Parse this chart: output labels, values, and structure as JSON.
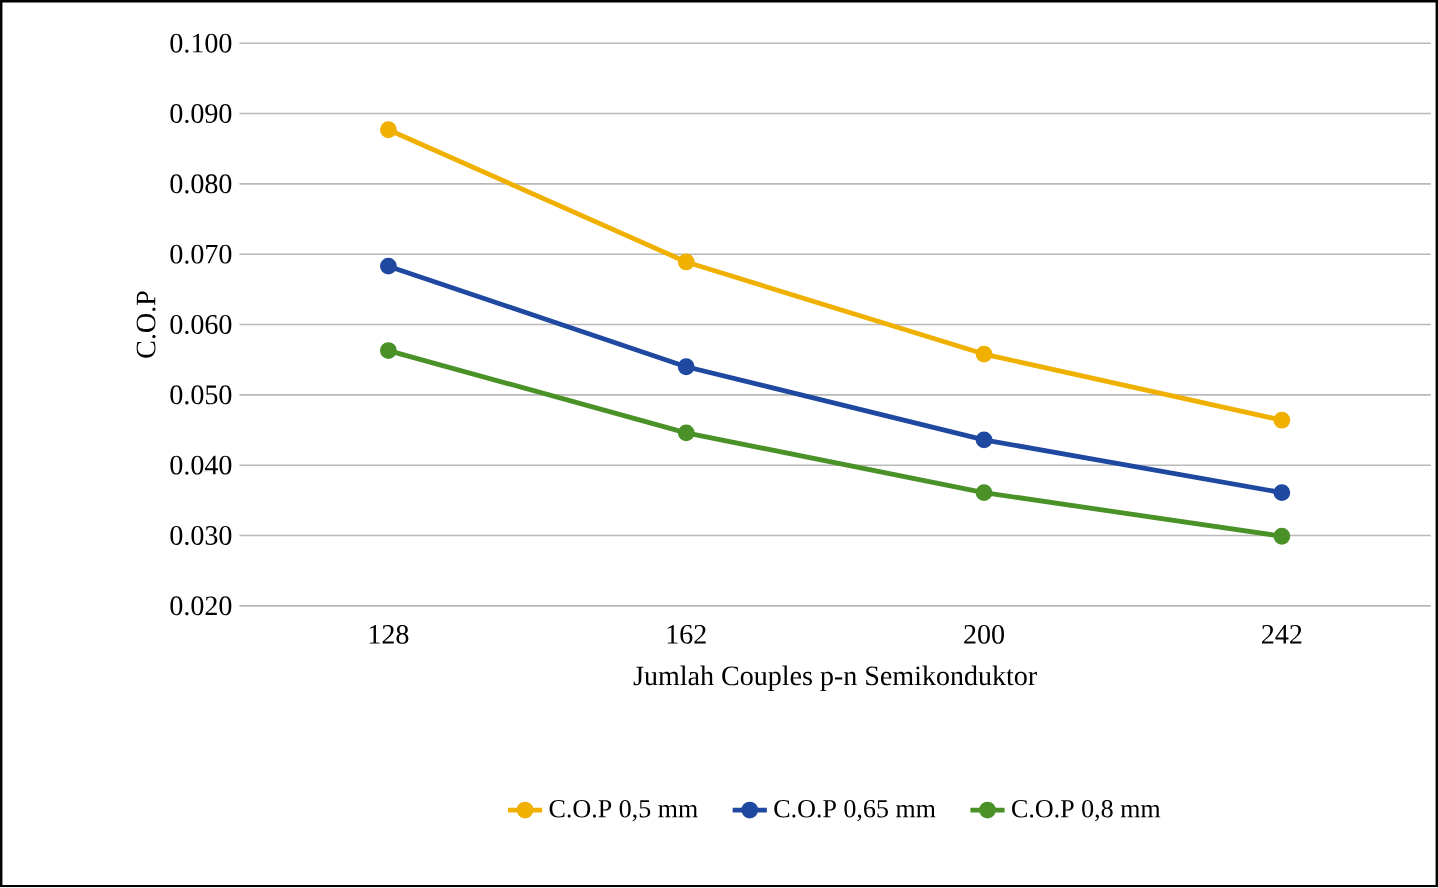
{
  "chart_data": {
    "type": "line",
    "xlabel": "Jumlah Couples p-n Semikonduktor",
    "ylabel": "C.O.P",
    "categories": [
      "128",
      "162",
      "200",
      "242"
    ],
    "series": [
      {
        "name": "C.O.P 0,5 mm",
        "color": "#f0b000",
        "values": [
          0.0877,
          0.0689,
          0.0558,
          0.0464
        ]
      },
      {
        "name": "C.O.P 0,65 mm",
        "color": "#1f48a0",
        "values": [
          0.0683,
          0.054,
          0.0436,
          0.0361
        ]
      },
      {
        "name": "C.O.P 0,8 mm",
        "color": "#4a9128",
        "values": [
          0.0563,
          0.0446,
          0.0361,
          0.0299
        ]
      }
    ],
    "ylim": [
      0.02,
      0.1
    ],
    "yticks": [
      {
        "value": 0.02,
        "label": "0.020"
      },
      {
        "value": 0.03,
        "label": "0.030"
      },
      {
        "value": 0.04,
        "label": "0.040"
      },
      {
        "value": 0.05,
        "label": "0.050"
      },
      {
        "value": 0.06,
        "label": "0.060"
      },
      {
        "value": 0.07,
        "label": "0.070"
      },
      {
        "value": 0.08,
        "label": "0.080"
      },
      {
        "value": 0.09,
        "label": "0.090"
      },
      {
        "value": 0.1,
        "label": "0.100"
      }
    ],
    "grid": "y",
    "legend": "bottom",
    "marker": "circle",
    "line_style": "solid"
  }
}
